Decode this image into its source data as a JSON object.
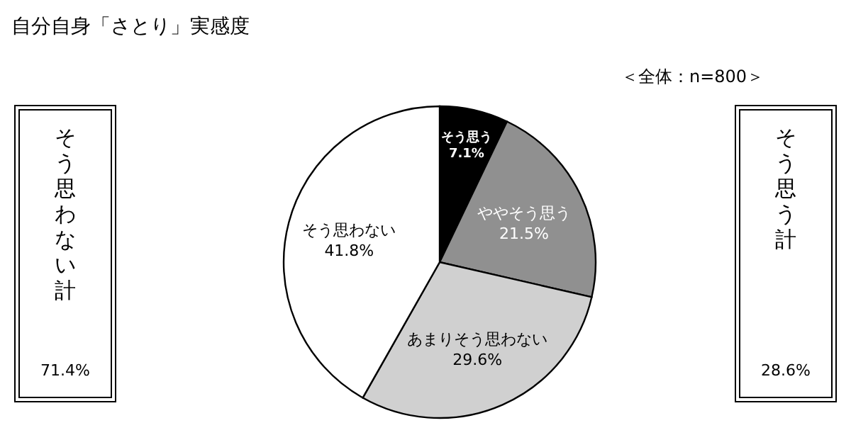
{
  "chart_data": {
    "type": "pie",
    "title": "自分自身「さとり」実感度",
    "categories": [
      "そう思う",
      "ややそう思う",
      "あまりそう思わない",
      "そう思わない"
    ],
    "values": [
      7.1,
      21.5,
      29.6,
      41.8
    ],
    "value_labels": [
      "7.1%",
      "21.5%",
      "29.6%",
      "41.8%"
    ],
    "colors": [
      "#000000",
      "#909090",
      "#d0d0d0",
      "#ffffff"
    ],
    "annotations": [
      "＜全体：n=800＞",
      "そう思わない計",
      "71.4%",
      "そう思う計",
      "28.6%"
    ],
    "legend": false
  }
}
